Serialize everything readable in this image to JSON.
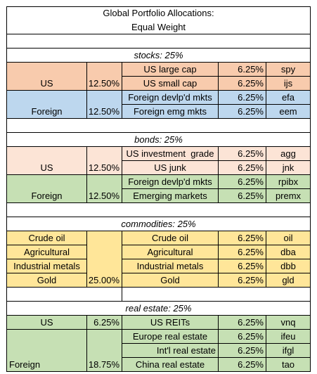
{
  "title": {
    "line1": "Global Portfolio Allocations:",
    "line2": "Equal Weight"
  },
  "sections": {
    "stocks": {
      "header": "stocks: 25%",
      "groups": [
        {
          "region": "US",
          "weight": "12.50%",
          "items": [
            {
              "name": "US large cap",
              "pct": "6.25%",
              "ticker": "spy"
            },
            {
              "name": "US small cap",
              "pct": "6.25%",
              "ticker": "ijs"
            }
          ]
        },
        {
          "region": "Foreign",
          "weight": "12.50%",
          "items": [
            {
              "name": "Foreign devlp'd mkts",
              "pct": "6.25%",
              "ticker": "efa"
            },
            {
              "name": "Foreign emg mkts",
              "pct": "6.25%",
              "ticker": "eem"
            }
          ]
        }
      ]
    },
    "bonds": {
      "header": "bonds: 25%",
      "groups": [
        {
          "region": "US",
          "weight": "12.50%",
          "items": [
            {
              "name": "US investment  grade",
              "pct": "6.25%",
              "ticker": "agg"
            },
            {
              "name": "US junk",
              "pct": "6.25%",
              "ticker": "jnk"
            }
          ]
        },
        {
          "region": "Foreign",
          "weight": "12.50%",
          "items": [
            {
              "name": "Foreign devlp'd mkts",
              "pct": "6.25%",
              "ticker": "rpibx"
            },
            {
              "name": "Emerging markets",
              "pct": "6.25%",
              "ticker": "premx"
            }
          ]
        }
      ]
    },
    "commodities": {
      "header": "commodities: 25%",
      "weight": "25.00%",
      "rows": [
        {
          "category": "Crude oil",
          "name": "Crude oil",
          "pct": "6.25%",
          "ticker": "oil"
        },
        {
          "category": "Agricultural",
          "name": "Agricultural",
          "pct": "6.25%",
          "ticker": "dba"
        },
        {
          "category": "Industrial metals",
          "name": "Industrial metals",
          "pct": "6.25%",
          "ticker": "dbb"
        },
        {
          "category": "Gold",
          "name": "Gold",
          "pct": "6.25%",
          "ticker": "gld"
        }
      ]
    },
    "real_estate": {
      "header": "real estate: 25%",
      "groups": [
        {
          "region": "US",
          "weight": "6.25%",
          "items": [
            {
              "name": "US REITs",
              "pct": "6.25%",
              "ticker": "vnq"
            }
          ]
        },
        {
          "region": "Foreign",
          "weight": "18.75%",
          "items": [
            {
              "name": "Europe real estate",
              "pct": "6.25%",
              "ticker": "ifeu"
            },
            {
              "name": "Int'l real estate",
              "pct": "6.25%",
              "ticker": "ifgl"
            },
            {
              "name": "China real estate",
              "pct": "6.25%",
              "ticker": "tao"
            }
          ]
        }
      ]
    },
    "colors": {
      "stocks_us": "#f8cbad",
      "stocks_foreign": "#bdd7ee",
      "bonds_us": "#fce4d6",
      "bonds_foreign": "#c6e0b4",
      "commodities": "#ffe699",
      "real_estate": "#c6e0b4"
    }
  }
}
